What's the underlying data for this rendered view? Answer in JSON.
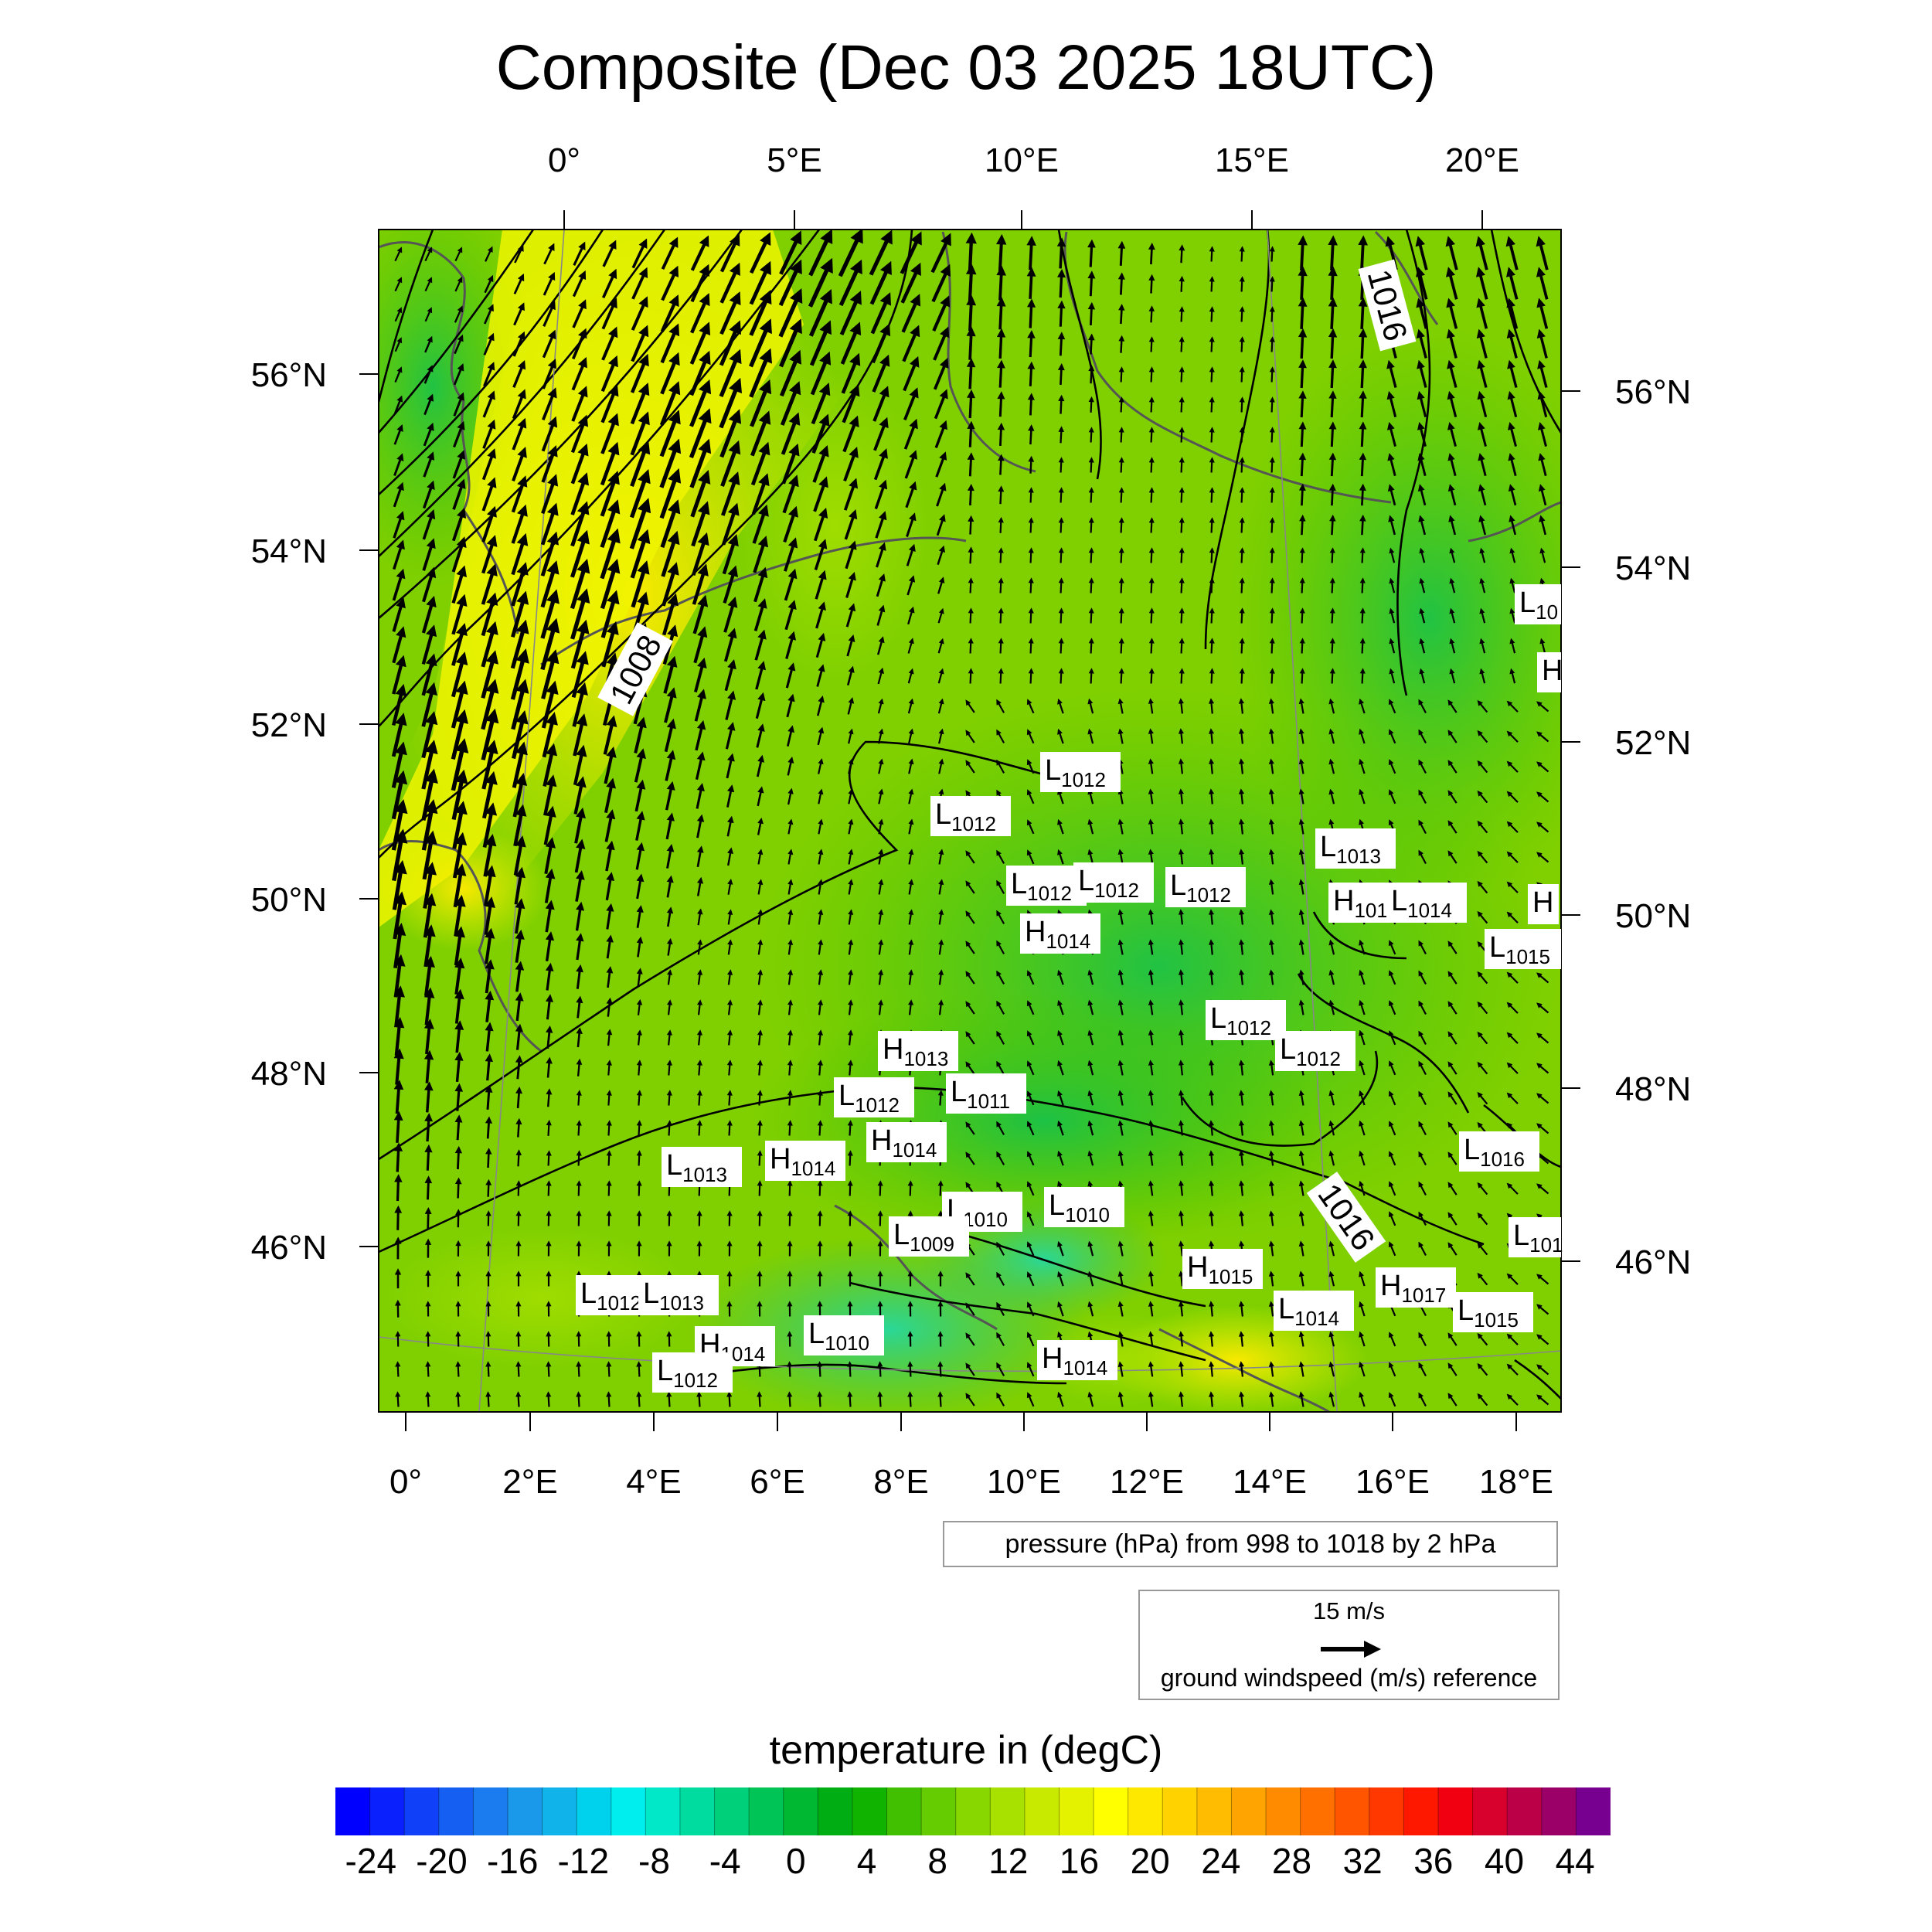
{
  "title": "Composite (Dec 03 2025 18UTC)",
  "top_lon_labels": [
    "0°",
    "5°E",
    "10°E",
    "15°E",
    "20°E"
  ],
  "bottom_lon_labels": [
    "0°",
    "2°E",
    "4°E",
    "6°E",
    "8°E",
    "10°E",
    "12°E",
    "14°E",
    "16°E",
    "18°E"
  ],
  "left_lat_labels": [
    "56°N",
    "54°N",
    "52°N",
    "50°N",
    "48°N",
    "46°N"
  ],
  "right_lat_labels": [
    "56°N",
    "54°N",
    "52°N",
    "50°N",
    "48°N",
    "46°N"
  ],
  "contour_labels": [
    {
      "text": "1008",
      "angle": -62
    },
    {
      "text": "1016",
      "angle": 75
    },
    {
      "text": "1016",
      "angle": 55
    }
  ],
  "pressure_centers": [
    {
      "type": "L",
      "value": "1012"
    },
    {
      "type": "L",
      "value": "1012"
    },
    {
      "type": "L",
      "value": "1013"
    },
    {
      "type": "L",
      "value": "1012"
    },
    {
      "type": "L",
      "value": "1012"
    },
    {
      "type": "H",
      "value": "101"
    },
    {
      "type": "L",
      "value": "1014"
    },
    {
      "type": "L",
      "value": "1012"
    },
    {
      "type": "H",
      "value": "1014"
    },
    {
      "type": "L",
      "value": "1015"
    },
    {
      "type": "L",
      "value": "1012"
    },
    {
      "type": "L",
      "value": "1012"
    },
    {
      "type": "H",
      "value": "1013"
    },
    {
      "type": "L",
      "value": "1012"
    },
    {
      "type": "L",
      "value": "1011"
    },
    {
      "type": "H",
      "value": "1014"
    },
    {
      "type": "L",
      "value": "1013"
    },
    {
      "type": "H",
      "value": "1014"
    },
    {
      "type": "L",
      "value": "1016"
    },
    {
      "type": "L",
      "value": "1010"
    },
    {
      "type": "L",
      "value": "1010"
    },
    {
      "type": "L",
      "value": "1009"
    },
    {
      "type": "L",
      "value": "101"
    },
    {
      "type": "H",
      "value": "1015"
    },
    {
      "type": "L",
      "value": "1012"
    },
    {
      "type": "L",
      "value": "1013"
    },
    {
      "type": "H",
      "value": "1017"
    },
    {
      "type": "L",
      "value": "1014"
    },
    {
      "type": "L",
      "value": "1015"
    },
    {
      "type": "L",
      "value": "1010"
    },
    {
      "type": "H",
      "value": "1014"
    },
    {
      "type": "L",
      "value": "1012"
    },
    {
      "type": "H",
      "value": "1014"
    },
    {
      "type": "L",
      "value": "10"
    },
    {
      "type": "H",
      "value": ""
    },
    {
      "type": "H",
      "value": ""
    }
  ],
  "pressure_caption": "pressure (hPa) from 998 to 1018 by 2 hPa",
  "wind_reference": {
    "speed_label": "15 m/s",
    "caption": "ground windspeed (m/s) reference"
  },
  "colorbar": {
    "title": "temperature in (degC)",
    "ticks": [
      "-24",
      "-20",
      "-16",
      "-12",
      "-8",
      "-4",
      "0",
      "4",
      "8",
      "12",
      "16",
      "20",
      "24",
      "28",
      "32",
      "36",
      "40",
      "44"
    ],
    "tick_values": [
      -24,
      -20,
      -16,
      -12,
      -8,
      -4,
      0,
      4,
      8,
      12,
      16,
      20,
      24,
      28,
      32,
      36,
      40,
      44
    ],
    "min": -26,
    "max": 46,
    "step": 2,
    "colors": [
      "#0000ff",
      "#0a20fc",
      "#1040f8",
      "#1560f2",
      "#1a7cee",
      "#1a98ea",
      "#10b4ea",
      "#00d2ee",
      "#00eeee",
      "#00e8c8",
      "#00dca0",
      "#00d07a",
      "#00c455",
      "#00b832",
      "#00ae14",
      "#10b400",
      "#40c000",
      "#64cc00",
      "#88d800",
      "#a8e000",
      "#c8ea00",
      "#e4f200",
      "#ffff00",
      "#ffe800",
      "#ffd200",
      "#ffbc00",
      "#ffa400",
      "#ff8c00",
      "#ff7000",
      "#ff5400",
      "#ff3800",
      "#ff1800",
      "#f00010",
      "#d8002c",
      "#bc0048",
      "#9a0068",
      "#780090"
    ]
  }
}
